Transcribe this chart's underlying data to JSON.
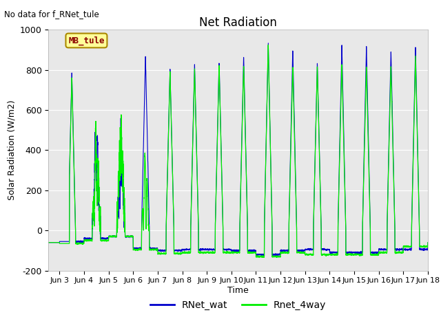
{
  "title": "Net Radiation",
  "ylabel": "Solar Radiation (W/m2)",
  "xlabel": "Time",
  "no_data_text": "No data for f_RNet_tule",
  "station_label": "MB_tule",
  "ylim": [
    -200,
    1000
  ],
  "xlim_days": [
    2.5,
    18.0
  ],
  "background_color": "#e8e8e8",
  "grid_color": "white",
  "line1_color": "#0000cc",
  "line2_color": "#00ee00",
  "line1_label": "RNet_wat",
  "line2_label": "Rnet_4way",
  "xtick_labels": [
    "Jun 3",
    "Jun 4",
    "Jun 5",
    "Jun 6",
    "Jun 7",
    "Jun 8",
    "Jun 9",
    "Jun 10",
    "Jun 11",
    "Jun 12",
    "Jun 13",
    "Jun 14",
    "Jun 15",
    "Jun 16",
    "Jun 17",
    "Jun 18"
  ],
  "xtick_positions": [
    3,
    4,
    5,
    6,
    7,
    8,
    9,
    10,
    11,
    12,
    13,
    14,
    15,
    16,
    17,
    18
  ],
  "ytick_labels": [
    "-200",
    "0",
    "200",
    "400",
    "600",
    "800",
    "1000"
  ],
  "ytick_positions": [
    -200,
    0,
    200,
    400,
    600,
    800,
    1000
  ]
}
